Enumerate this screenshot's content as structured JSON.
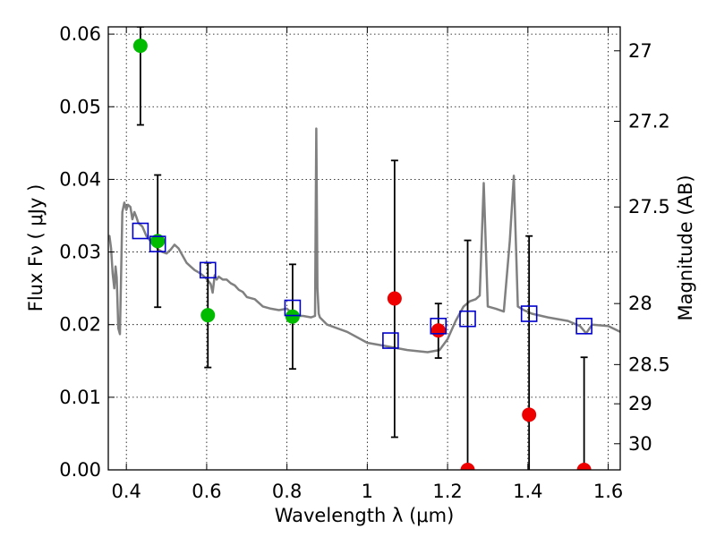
{
  "chart_data": {
    "type": "scatter",
    "title": "",
    "xlabel": "Wavelength  λ (μm)",
    "ylabel": "Flux  Fν  ( μJy )",
    "y2label": "Magnitude (AB)",
    "xlim": [
      0.355,
      1.63
    ],
    "ylim": [
      0.0,
      0.061
    ],
    "grid": true,
    "x_ticks": [
      0.4,
      0.6,
      0.8,
      1.0,
      1.2,
      1.4,
      1.6
    ],
    "x_tick_labels": [
      "0.4",
      "0.6",
      "0.8",
      "1",
      "1.2",
      "1.4",
      "1.6"
    ],
    "y_ticks": [
      0.0,
      0.01,
      0.02,
      0.03,
      0.04,
      0.05,
      0.06
    ],
    "y_tick_labels": [
      "0.00",
      "0.01",
      "0.02",
      "0.03",
      "0.04",
      "0.05",
      "0.06"
    ],
    "y2_ticks": [
      {
        "flux": 0.0577,
        "label": "27"
      },
      {
        "flux": 0.048,
        "label": "27.2"
      },
      {
        "flux": 0.0362,
        "label": "27.5"
      },
      {
        "flux": 0.0229,
        "label": "28"
      },
      {
        "flux": 0.0145,
        "label": "28.5"
      },
      {
        "flux": 0.0091,
        "label": "29"
      },
      {
        "flux": 0.0036,
        "label": "30"
      }
    ],
    "colors": {
      "model": "#808080",
      "detections": "#00bb00",
      "low_significance": "#ee0000",
      "model_photometry": "#0000cc",
      "errorbars": "#000000",
      "grid": "#000000"
    },
    "series": [
      {
        "kind": "line",
        "color": "#808080",
        "x": [
          0.355,
          0.358,
          0.362,
          0.366,
          0.37,
          0.373,
          0.376,
          0.38,
          0.384,
          0.39,
          0.395,
          0.4,
          0.404,
          0.41,
          0.415,
          0.42,
          0.425,
          0.43,
          0.44,
          0.45,
          0.46,
          0.47,
          0.48,
          0.49,
          0.5,
          0.51,
          0.52,
          0.53,
          0.54,
          0.55,
          0.56,
          0.57,
          0.58,
          0.59,
          0.6,
          0.61,
          0.615,
          0.62,
          0.625,
          0.63,
          0.64,
          0.65,
          0.66,
          0.67,
          0.68,
          0.69,
          0.7,
          0.72,
          0.74,
          0.76,
          0.78,
          0.8,
          0.82,
          0.84,
          0.86,
          0.87,
          0.873,
          0.876,
          0.879,
          0.882,
          0.9,
          0.95,
          1.0,
          1.05,
          1.1,
          1.15,
          1.18,
          1.2,
          1.22,
          1.24,
          1.255,
          1.27,
          1.28,
          1.29,
          1.3,
          1.32,
          1.34,
          1.355,
          1.365,
          1.375,
          1.39,
          1.41,
          1.45,
          1.5,
          1.53,
          1.545,
          1.56,
          1.6,
          1.63
        ],
        "y": [
          0.0318,
          0.0322,
          0.0305,
          0.027,
          0.025,
          0.028,
          0.0265,
          0.0195,
          0.0187,
          0.0355,
          0.0368,
          0.0358,
          0.0365,
          0.0362,
          0.0345,
          0.0355,
          0.0348,
          0.034,
          0.0335,
          0.0322,
          0.0315,
          0.031,
          0.0303,
          0.03,
          0.0298,
          0.0303,
          0.031,
          0.0305,
          0.0295,
          0.0285,
          0.028,
          0.0275,
          0.0272,
          0.0268,
          0.0263,
          0.0256,
          0.0244,
          0.0268,
          0.0262,
          0.0266,
          0.0262,
          0.0262,
          0.0257,
          0.0254,
          0.0248,
          0.0245,
          0.0238,
          0.0235,
          0.0225,
          0.0222,
          0.022,
          0.0222,
          0.0212,
          0.0212,
          0.021,
          0.0212,
          0.047,
          0.025,
          0.0215,
          0.021,
          0.02,
          0.019,
          0.0175,
          0.017,
          0.0165,
          0.0162,
          0.0165,
          0.018,
          0.0205,
          0.0225,
          0.0232,
          0.0235,
          0.024,
          0.0395,
          0.0225,
          0.0222,
          0.0218,
          0.0315,
          0.0405,
          0.0225,
          0.022,
          0.0215,
          0.021,
          0.0205,
          0.0198,
          0.0188,
          0.02,
          0.0198,
          0.019
        ]
      },
      {
        "kind": "errorbar",
        "color": "#00bb00",
        "marker": "circle",
        "points": [
          {
            "x": 0.435,
            "y": 0.0584,
            "lo": 0.0475,
            "hi": 0.061
          },
          {
            "x": 0.478,
            "y": 0.0315,
            "lo": 0.0224,
            "hi": 0.0406
          },
          {
            "x": 0.603,
            "y": 0.0213,
            "lo": 0.0141,
            "hi": 0.0285
          },
          {
            "x": 0.814,
            "y": 0.0211,
            "lo": 0.0139,
            "hi": 0.0283
          }
        ]
      },
      {
        "kind": "errorbar",
        "color": "#ee0000",
        "marker": "circle",
        "points": [
          {
            "x": 1.068,
            "y": 0.0236,
            "lo": 0.0045,
            "hi": 0.0426
          },
          {
            "x": 1.177,
            "y": 0.0192,
            "lo": 0.0154,
            "hi": 0.0229
          },
          {
            "x": 1.25,
            "y": 0.0,
            "lo": 0.0,
            "hi": 0.0316
          },
          {
            "x": 1.403,
            "y": 0.0076,
            "lo": 0.0,
            "hi": 0.0322
          },
          {
            "x": 1.54,
            "y": 0.0,
            "lo": 0.0,
            "hi": 0.0155
          }
        ]
      },
      {
        "kind": "scatter",
        "color": "#0000cc",
        "marker": "open-square",
        "x": [
          0.435,
          0.478,
          0.603,
          0.814,
          1.058,
          1.177,
          1.25,
          1.403,
          1.54
        ],
        "y": [
          0.0329,
          0.0311,
          0.0275,
          0.0223,
          0.0178,
          0.0198,
          0.0208,
          0.0215,
          0.0198
        ]
      }
    ]
  }
}
